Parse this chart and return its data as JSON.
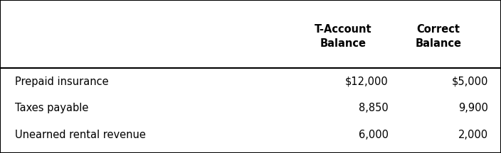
{
  "col_headers": [
    "T-Account\nBalance",
    "Correct\nBalance"
  ],
  "rows": [
    [
      "Prepaid insurance",
      "$12,000",
      "$5,000"
    ],
    [
      "Taxes payable",
      "8,850",
      "9,900"
    ],
    [
      "Unearned rental revenue",
      "6,000",
      "2,000"
    ]
  ],
  "background_color": "#ffffff",
  "border_color": "#000000",
  "header_font_size": 10.5,
  "body_font_size": 10.5,
  "font_weight_header": "bold",
  "font_weight_body": "normal",
  "figsize": [
    7.04,
    2.16
  ],
  "dpi": 100
}
